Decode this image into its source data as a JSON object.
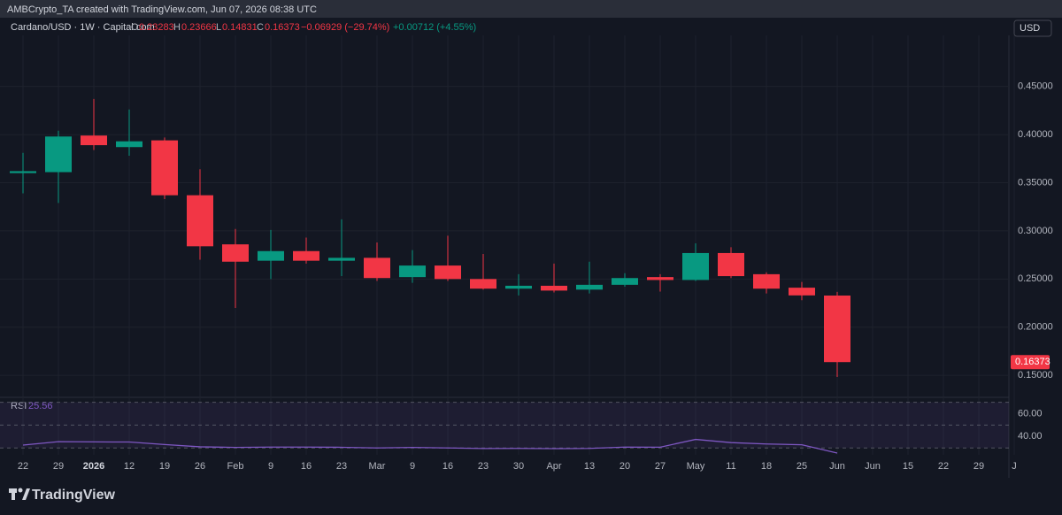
{
  "page": {
    "watermark": "AMBCrypto_TA created with TradingView.com, Jun 07, 2026 08:38 UTC",
    "currency": "USD",
    "brand": "TradingView"
  },
  "chart_data": {
    "type": "candlestick",
    "title": "Cardano/USD · 1W · Capital.com",
    "change": "−0.06929 (−29.74%)",
    "extra_change": "+0.00712 (+4.55%)",
    "categories": [
      "22",
      "29",
      "2026",
      "12",
      "19",
      "26",
      "Feb",
      "9",
      "16",
      "23",
      "Mar",
      "9",
      "16",
      "23",
      "30",
      "Apr",
      "13",
      "20",
      "27",
      "May",
      "11",
      "18",
      "25",
      "Jun",
      "Jun",
      "15",
      "22",
      "29",
      "J"
    ],
    "open": [
      0.36,
      0.361,
      0.399,
      0.387,
      0.394,
      0.337,
      0.286,
      0.269,
      0.279,
      0.269,
      0.272,
      0.252,
      0.264,
      0.25,
      0.24,
      0.243,
      0.239,
      0.244,
      0.252,
      0.249,
      0.277,
      0.255,
      0.241,
      0.23283,
      null,
      null,
      null,
      null,
      null
    ],
    "high": [
      0.381,
      0.404,
      0.437,
      0.426,
      0.397,
      0.364,
      0.302,
      0.301,
      0.293,
      0.312,
      0.288,
      0.28,
      0.295,
      0.276,
      0.255,
      0.266,
      0.268,
      0.256,
      0.255,
      0.287,
      0.283,
      0.257,
      0.247,
      0.23666,
      null,
      null,
      null,
      null,
      null
    ],
    "low": [
      0.339,
      0.329,
      0.384,
      0.378,
      0.333,
      0.27,
      0.22,
      0.25,
      0.266,
      0.253,
      0.248,
      0.246,
      0.248,
      0.239,
      0.233,
      0.236,
      0.235,
      0.242,
      0.237,
      0.248,
      0.251,
      0.235,
      0.228,
      0.14831,
      null,
      null,
      null,
      null,
      null
    ],
    "close": [
      0.362,
      0.398,
      0.389,
      0.393,
      0.337,
      0.284,
      0.268,
      0.279,
      0.269,
      0.272,
      0.251,
      0.264,
      0.25,
      0.24,
      0.243,
      0.238,
      0.244,
      0.251,
      0.249,
      0.277,
      0.253,
      0.24,
      0.233,
      0.16373,
      null,
      null,
      null,
      null,
      null
    ],
    "up_color": "#089981",
    "down_color": "#f23645",
    "ylim": [
      0.129,
      0.503
    ],
    "yticks": [
      {
        "value": 0.15,
        "label": "0.15000"
      },
      {
        "value": 0.2,
        "label": "0.20000"
      },
      {
        "value": 0.25,
        "label": "0.25000"
      },
      {
        "value": 0.3,
        "label": "0.30000"
      },
      {
        "value": 0.35,
        "label": "0.35000"
      },
      {
        "value": 0.4,
        "label": "0.40000"
      },
      {
        "value": 0.45,
        "label": "0.45000"
      }
    ],
    "grid": true,
    "rsi": {
      "name": "RSI",
      "color": "#7e57c2",
      "values": [
        32.5,
        35.5,
        35.3,
        35.2,
        33,
        31,
        30.5,
        30.8,
        30.8,
        30.6,
        30,
        30.5,
        30,
        29.5,
        29.6,
        29.4,
        29.6,
        30.8,
        30.7,
        37.5,
        34.7,
        33.5,
        32.8,
        25.56,
        null,
        null,
        null,
        null,
        null
      ],
      "ylim": [
        24,
        72
      ],
      "yticks": [
        {
          "value": 40,
          "label": "40.00"
        },
        {
          "value": 60,
          "label": "60.00"
        }
      ],
      "levels": [
        70,
        50,
        30
      ]
    }
  }
}
